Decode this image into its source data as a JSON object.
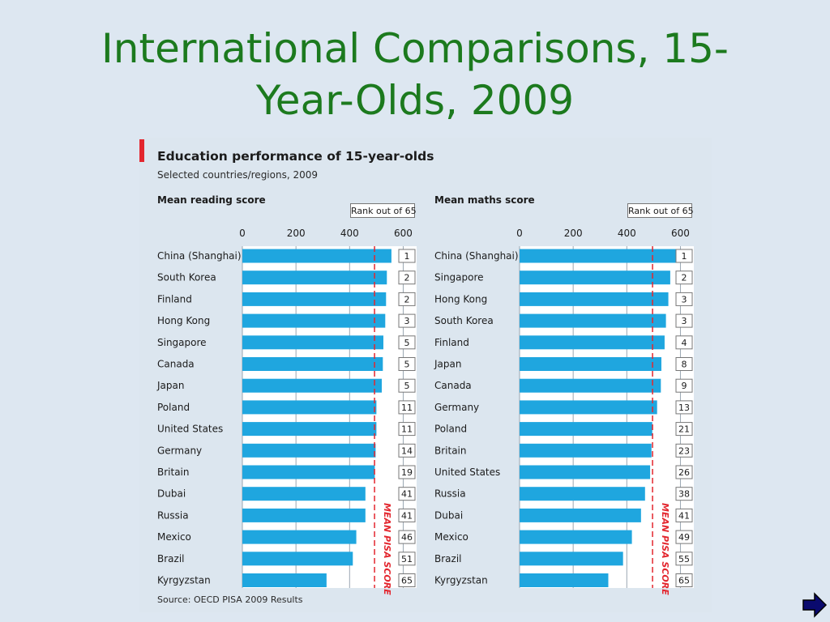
{
  "slide": {
    "title_line1": "International Comparisons, 15-",
    "title_line2": "Year-Olds, 2009"
  },
  "infographic": {
    "title": "Education performance of 15-year-olds",
    "subtitle": "Selected countries/regions, 2009",
    "rank_header": "Rank out of 65",
    "source": "Source: OECD PISA 2009 Results",
    "annotation": "MEAN PISA SCORE"
  },
  "colors": {
    "bar": "#1fa6df",
    "mean_line": "#e3262e",
    "title": "#1c7a1e",
    "accent": "#e3262e"
  },
  "next_icon": "arrow-right-icon",
  "chart_data": [
    {
      "type": "bar",
      "orientation": "horizontal",
      "title": "Mean reading score",
      "xlim": [
        0,
        650
      ],
      "xticks": [
        0,
        200,
        400,
        600
      ],
      "mean_pisa_score": 493,
      "categories": [
        "China (Shanghai)",
        "South Korea",
        "Finland",
        "Hong Kong",
        "Singapore",
        "Canada",
        "Japan",
        "Poland",
        "United States",
        "Germany",
        "Britain",
        "Dubai",
        "Russia",
        "Mexico",
        "Brazil",
        "Kyrgyzstan"
      ],
      "values": [
        556,
        539,
        536,
        533,
        526,
        524,
        520,
        500,
        500,
        497,
        494,
        459,
        459,
        425,
        412,
        314
      ],
      "ranks": [
        1,
        2,
        2,
        3,
        5,
        5,
        5,
        11,
        11,
        14,
        19,
        41,
        41,
        46,
        51,
        65
      ]
    },
    {
      "type": "bar",
      "orientation": "horizontal",
      "title": "Mean maths score",
      "xlim": [
        0,
        650
      ],
      "xticks": [
        0,
        200,
        400,
        600
      ],
      "mean_pisa_score": 496,
      "categories": [
        "China (Shanghai)",
        "Singapore",
        "Hong Kong",
        "South Korea",
        "Finland",
        "Japan",
        "Canada",
        "Germany",
        "Poland",
        "Britain",
        "United States",
        "Russia",
        "Dubai",
        "Mexico",
        "Brazil",
        "Kyrgyzstan"
      ],
      "values": [
        600,
        562,
        555,
        546,
        541,
        529,
        527,
        513,
        495,
        492,
        487,
        468,
        453,
        419,
        386,
        331
      ],
      "ranks": [
        1,
        2,
        3,
        3,
        4,
        8,
        9,
        13,
        21,
        23,
        26,
        38,
        41,
        49,
        55,
        65
      ]
    }
  ]
}
